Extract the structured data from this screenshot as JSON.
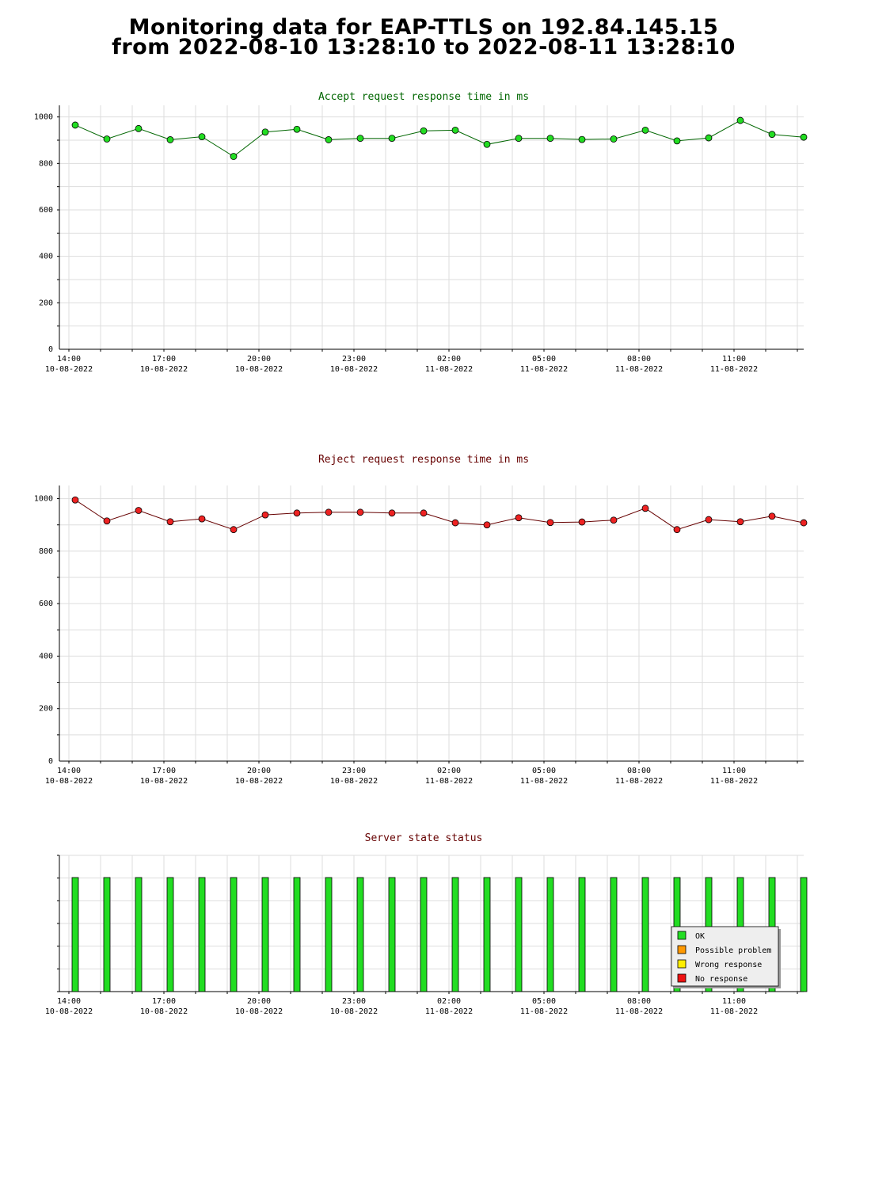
{
  "page": {
    "title_line1": "Monitoring data for EAP-TTLS on 192.84.145.15",
    "title_line2": "from 2022-08-10 13:28:10 to 2022-08-11 13:28:10"
  },
  "colors": {
    "accept_line": "#006600",
    "accept_marker": "#22dd22",
    "reject_line": "#660000",
    "reject_marker": "#ee2222",
    "accept_title": "#006600",
    "reject_title": "#660000",
    "status_title": "#660000",
    "grid": "#dddddd",
    "ok": "#22dd22",
    "possible_problem": "#ff9900",
    "wrong_response": "#ffee00",
    "no_response": "#ee1111"
  },
  "chart_data": [
    {
      "id": "accept",
      "type": "line",
      "title": "Accept request response time in ms",
      "x_tick_labels": [
        {
          "time": "14:00",
          "date": "10-08-2022"
        },
        {
          "time": "17:00",
          "date": "10-08-2022"
        },
        {
          "time": "20:00",
          "date": "10-08-2022"
        },
        {
          "time": "23:00",
          "date": "10-08-2022"
        },
        {
          "time": "02:00",
          "date": "11-08-2022"
        },
        {
          "time": "05:00",
          "date": "11-08-2022"
        },
        {
          "time": "08:00",
          "date": "11-08-2022"
        },
        {
          "time": "11:00",
          "date": "11-08-2022"
        }
      ],
      "y_ticks": [
        0,
        200,
        400,
        600,
        800,
        1000
      ],
      "ylim": [
        0,
        1050
      ],
      "grid": true,
      "x_hours": [
        14.2,
        15.2,
        16.2,
        17.2,
        18.2,
        19.2,
        20.2,
        21.2,
        22.2,
        23.2,
        24.2,
        25.2,
        26.2,
        27.2,
        28.2,
        29.2,
        30.2,
        31.2,
        32.2,
        33.2,
        34.2,
        35.2,
        36.2,
        37.2
      ],
      "values": [
        965,
        905,
        950,
        902,
        915,
        830,
        935,
        947,
        902,
        908,
        908,
        940,
        943,
        882,
        908,
        908,
        903,
        905,
        943,
        897,
        910,
        985,
        925,
        913
      ]
    },
    {
      "id": "reject",
      "type": "line",
      "title": "Reject request response time in ms",
      "x_tick_labels": [
        {
          "time": "14:00",
          "date": "10-08-2022"
        },
        {
          "time": "17:00",
          "date": "10-08-2022"
        },
        {
          "time": "20:00",
          "date": "10-08-2022"
        },
        {
          "time": "23:00",
          "date": "10-08-2022"
        },
        {
          "time": "02:00",
          "date": "11-08-2022"
        },
        {
          "time": "05:00",
          "date": "11-08-2022"
        },
        {
          "time": "08:00",
          "date": "11-08-2022"
        },
        {
          "time": "11:00",
          "date": "11-08-2022"
        }
      ],
      "y_ticks": [
        0,
        200,
        400,
        600,
        800,
        1000
      ],
      "ylim": [
        0,
        1050
      ],
      "grid": true,
      "x_hours": [
        14.2,
        15.2,
        16.2,
        17.2,
        18.2,
        19.2,
        20.2,
        21.2,
        22.2,
        23.2,
        24.2,
        25.2,
        26.2,
        27.2,
        28.2,
        29.2,
        30.2,
        31.2,
        32.2,
        33.2,
        34.2,
        35.2,
        36.2,
        37.2
      ],
      "values": [
        995,
        915,
        955,
        912,
        923,
        882,
        938,
        945,
        948,
        948,
        945,
        945,
        908,
        900,
        927,
        909,
        911,
        918,
        963,
        882,
        920,
        912,
        933,
        908
      ]
    },
    {
      "id": "status",
      "type": "bar",
      "title": "Server state status",
      "x_tick_labels": [
        {
          "time": "14:00",
          "date": "10-08-2022"
        },
        {
          "time": "17:00",
          "date": "10-08-2022"
        },
        {
          "time": "20:00",
          "date": "10-08-2022"
        },
        {
          "time": "23:00",
          "date": "10-08-2022"
        },
        {
          "time": "02:00",
          "date": "11-08-2022"
        },
        {
          "time": "05:00",
          "date": "11-08-2022"
        },
        {
          "time": "08:00",
          "date": "11-08-2022"
        },
        {
          "time": "11:00",
          "date": "11-08-2022"
        }
      ],
      "x_hours": [
        14.2,
        15.2,
        16.2,
        17.2,
        18.2,
        19.2,
        20.2,
        21.2,
        22.2,
        23.2,
        24.2,
        25.2,
        26.2,
        27.2,
        28.2,
        29.2,
        30.2,
        31.2,
        32.2,
        33.2,
        34.2,
        35.2,
        36.2,
        37.2
      ],
      "states": [
        "ok",
        "ok",
        "ok",
        "ok",
        "ok",
        "ok",
        "ok",
        "ok",
        "ok",
        "ok",
        "ok",
        "ok",
        "ok",
        "ok",
        "ok",
        "ok",
        "ok",
        "ok",
        "ok",
        "ok",
        "ok",
        "ok",
        "ok",
        "ok"
      ],
      "legend_position": "bottom-right",
      "legend": [
        {
          "key": "ok",
          "label": "OK"
        },
        {
          "key": "possible_problem",
          "label": "Possible problem"
        },
        {
          "key": "wrong_response",
          "label": "Wrong response"
        },
        {
          "key": "no_response",
          "label": "No response"
        }
      ]
    }
  ]
}
